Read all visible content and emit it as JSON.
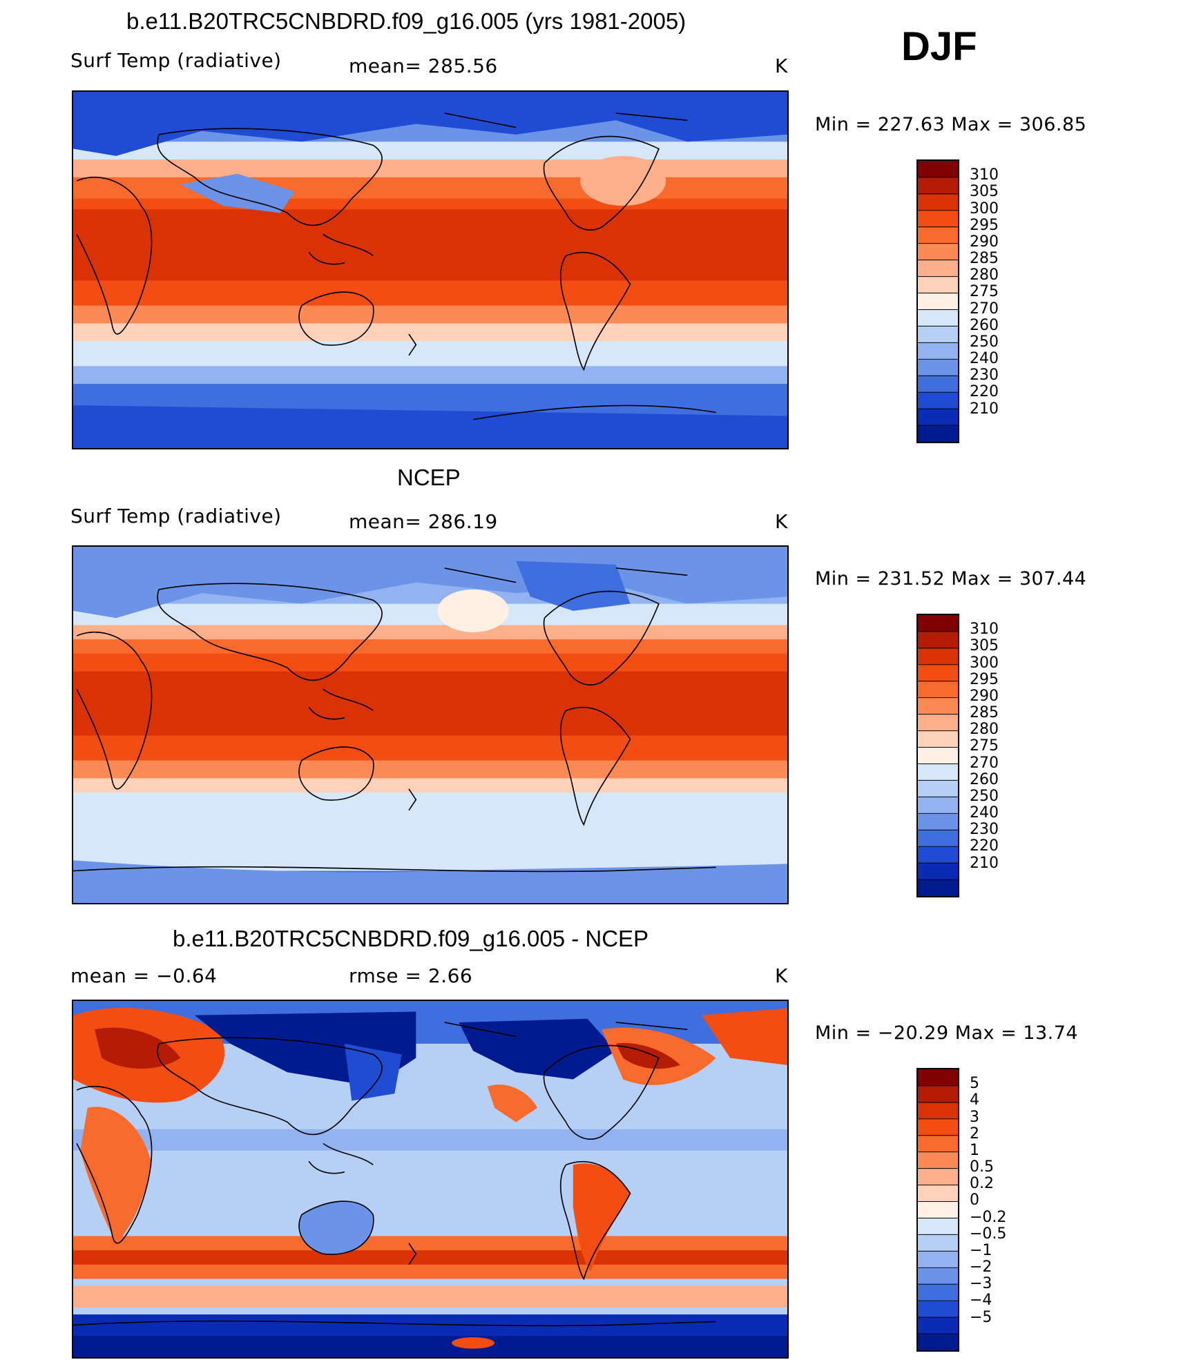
{
  "header": {
    "season": "DJF"
  },
  "panels": [
    {
      "title": "b.e11.B20TRC5CNBDRD.f09_g16.005 (yrs 1981-2005)",
      "left_label": "Surf Temp (radiative)",
      "center_label": "mean=  285.56",
      "units": "K",
      "minmax": "Min  =  227.63  Max  =  306.85",
      "colorbar": {
        "labels": [
          "310",
          "305",
          "300",
          "295",
          "290",
          "285",
          "280",
          "275",
          "270",
          "260",
          "250",
          "240",
          "230",
          "220",
          "210"
        ],
        "colors": [
          "#7f0000",
          "#b51c06",
          "#d93207",
          "#f24d12",
          "#f96a2d",
          "#fc8a55",
          "#fdaf8a",
          "#fed2b8",
          "#fef0e4",
          "#d6e7f9",
          "#b6cff5",
          "#92b2f0",
          "#6b93e8",
          "#3f6ede",
          "#1f4cd2",
          "#0a2cb5",
          "#001b8f"
        ]
      }
    },
    {
      "title": "NCEP",
      "left_label": "Surf Temp (radiative)",
      "center_label": "mean=  286.19",
      "units": "K",
      "minmax": "Min  =  231.52  Max  =  307.44",
      "colorbar": {
        "labels": [
          "310",
          "305",
          "300",
          "295",
          "290",
          "285",
          "280",
          "275",
          "270",
          "260",
          "250",
          "240",
          "230",
          "220",
          "210"
        ],
        "colors": [
          "#7f0000",
          "#b51c06",
          "#d93207",
          "#f24d12",
          "#f96a2d",
          "#fc8a55",
          "#fdaf8a",
          "#fed2b8",
          "#fef0e4",
          "#d6e7f9",
          "#b6cff5",
          "#92b2f0",
          "#6b93e8",
          "#3f6ede",
          "#1f4cd2",
          "#0a2cb5",
          "#001b8f"
        ]
      }
    },
    {
      "title": "b.e11.B20TRC5CNBDRD.f09_g16.005 - NCEP",
      "left_label": "mean =    −0.64",
      "center_label": "rmse =     2.66",
      "units": "K",
      "minmax": "Min  =  −20.29  Max  =    13.74",
      "colorbar": {
        "labels": [
          "5",
          "4",
          "3",
          "2",
          "1",
          "0.5",
          "0.2",
          "0",
          "−0.2",
          "−0.5",
          "−1",
          "−2",
          "−3",
          "−4",
          "−5"
        ],
        "colors": [
          "#7f0000",
          "#b51c06",
          "#d93207",
          "#f24d12",
          "#f96a2d",
          "#fc8a55",
          "#fdaf8a",
          "#fed2b8",
          "#fef0e4",
          "#d6e7f9",
          "#b6cff5",
          "#92b2f0",
          "#6b93e8",
          "#3f6ede",
          "#1f4cd2",
          "#0a2cb5",
          "#001b8f"
        ]
      }
    }
  ]
}
